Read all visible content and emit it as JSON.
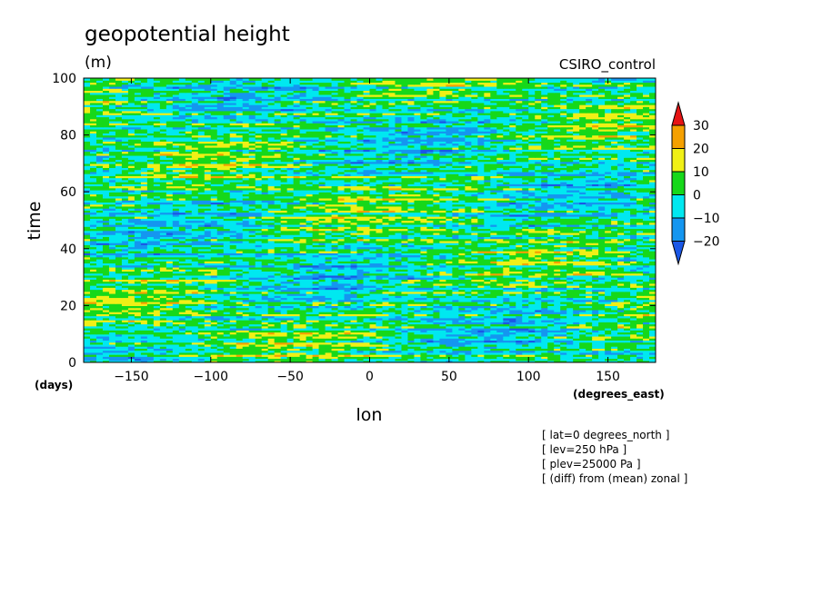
{
  "chart_data": {
    "type": "heatmap",
    "title": "geopotential height",
    "units": "(m)",
    "run_label": "CSIRO_control",
    "xlabel": "lon",
    "ylabel": "time",
    "x_units": "(degrees_east)",
    "y_units": "(days)",
    "xlim": [
      -180,
      180
    ],
    "ylim": [
      0,
      100
    ],
    "x_ticks": [
      -150,
      -100,
      -50,
      0,
      50,
      100,
      150
    ],
    "y_ticks": [
      0,
      20,
      40,
      60,
      80,
      100
    ],
    "colorbar": {
      "levels": [
        -20,
        -10,
        0,
        10,
        20,
        30
      ],
      "colors": [
        "#1a57e6",
        "#1496f0",
        "#00e8f0",
        "#16d81a",
        "#f0f016",
        "#f5a000",
        "#e61414"
      ],
      "extend": "both"
    },
    "notes": [
      "[ lat=0 degrees_north ]",
      "[ lev=250 hPa ]",
      "[ plev=25000 Pa ]",
      "[ (diff) from (mean) zonal ]"
    ]
  }
}
